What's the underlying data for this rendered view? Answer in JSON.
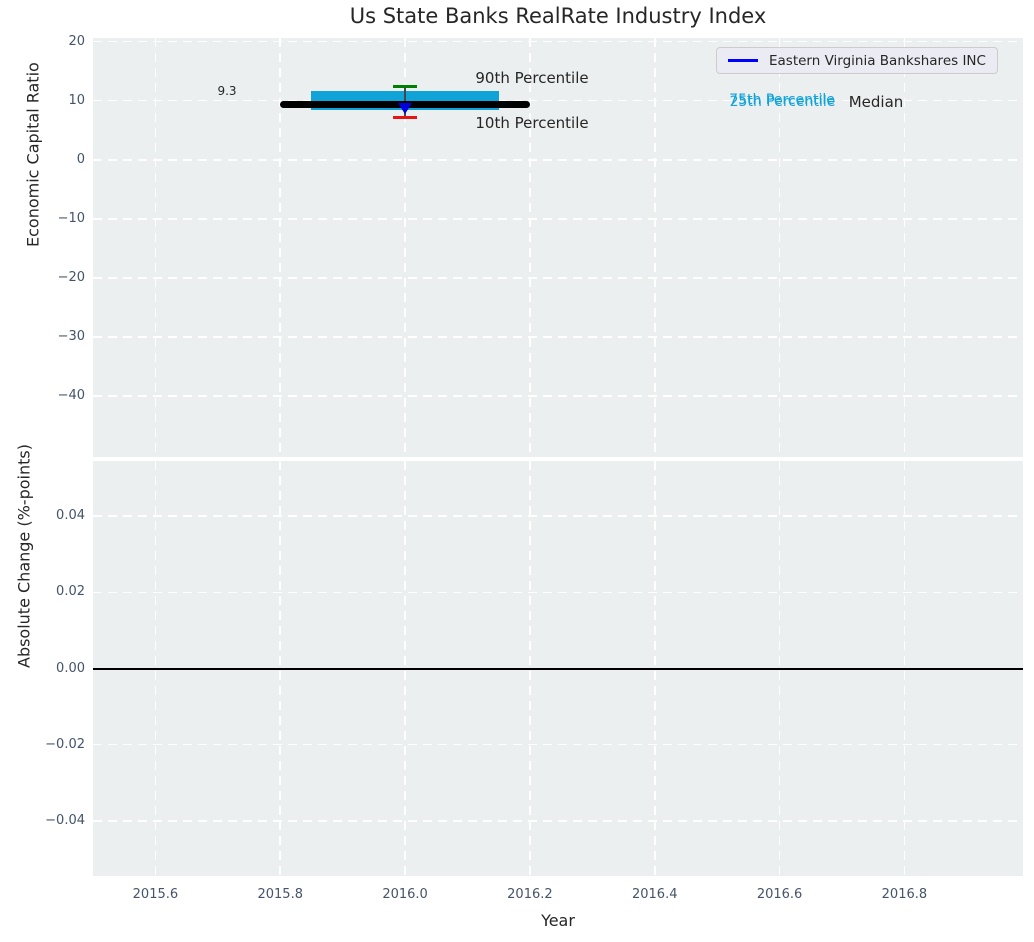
{
  "title": "Us State Banks RealRate Industry Index",
  "legend": {
    "label": "Eastern Virginia Bankshares INC",
    "line_color": "#0000ff"
  },
  "annotations": {
    "median_value_label": "9.3",
    "p90_label": "90th Percentile",
    "p10_label": "10th Percentile",
    "p75_label": "75th Percentile",
    "p25_label": "25th Percentile",
    "median_label": "Median"
  },
  "colors": {
    "plot_bg": "#eceff0",
    "grid": "#ffffff",
    "box_fill": "#10a3d8",
    "p90_cap": "#008000",
    "p10_cap": "#e81313",
    "median_line": "#000000",
    "whisker": "#40494f",
    "company_marker": "#0000e0",
    "tick_label": "#44546a",
    "text": "#262626",
    "zero_line": "#000000"
  },
  "chart_data": [
    {
      "type": "line",
      "title": "Us State Banks RealRate Industry Index",
      "ylabel": "Economic Capital Ratio",
      "xlim": [
        2015.5,
        2016.99
      ],
      "ylim": [
        -50.3,
        20.6
      ],
      "grid": true,
      "legend_position": "upper right",
      "yticks": [
        {
          "v": 20,
          "label": "20"
        },
        {
          "v": 10,
          "label": "10"
        },
        {
          "v": 0,
          "label": "0"
        },
        {
          "v": -10,
          "label": "−10"
        },
        {
          "v": -20,
          "label": "−20"
        },
        {
          "v": -30,
          "label": "−30"
        },
        {
          "v": -40,
          "label": "−40"
        }
      ],
      "xticks": [
        {
          "v": 2015.6,
          "label": ""
        },
        {
          "v": 2015.8,
          "label": ""
        },
        {
          "v": 2016.0,
          "label": ""
        },
        {
          "v": 2016.2,
          "label": ""
        },
        {
          "v": 2016.4,
          "label": ""
        },
        {
          "v": 2016.6,
          "label": ""
        },
        {
          "v": 2016.8,
          "label": ""
        }
      ],
      "series": [
        {
          "name": "Eastern Virginia Bankshares INC",
          "x": [
            2016.0
          ],
          "y": [
            8.8
          ],
          "color": "#0000e0",
          "marker": "triangle-down"
        }
      ],
      "industry_percentiles": {
        "year": 2016.0,
        "p90": 12.4,
        "p75": 11.55,
        "median": 9.3,
        "p25": 8.35,
        "p10": 7.2,
        "median_line_span": [
          2015.8,
          2016.2
        ],
        "box_span": [
          2015.85,
          2016.15
        ]
      }
    },
    {
      "type": "line",
      "ylabel": "Absolute Change (%-points)",
      "xlabel": "Year",
      "xlim": [
        2015.5,
        2016.99
      ],
      "ylim": [
        -0.0545,
        0.0545
      ],
      "grid": true,
      "zero_line": 0.0,
      "yticks": [
        {
          "v": 0.04,
          "label": "0.04"
        },
        {
          "v": 0.02,
          "label": "0.02"
        },
        {
          "v": 0,
          "label": "0.00"
        },
        {
          "v": -0.02,
          "label": "−0.02"
        },
        {
          "v": -0.04,
          "label": "−0.04"
        }
      ],
      "xticks": [
        {
          "v": 2015.6,
          "label": "2015.6"
        },
        {
          "v": 2015.8,
          "label": "2015.8"
        },
        {
          "v": 2016.0,
          "label": "2016.0"
        },
        {
          "v": 2016.2,
          "label": "2016.2"
        },
        {
          "v": 2016.4,
          "label": "2016.4"
        },
        {
          "v": 2016.6,
          "label": "2016.6"
        },
        {
          "v": 2016.8,
          "label": "2016.8"
        }
      ],
      "series": []
    }
  ]
}
